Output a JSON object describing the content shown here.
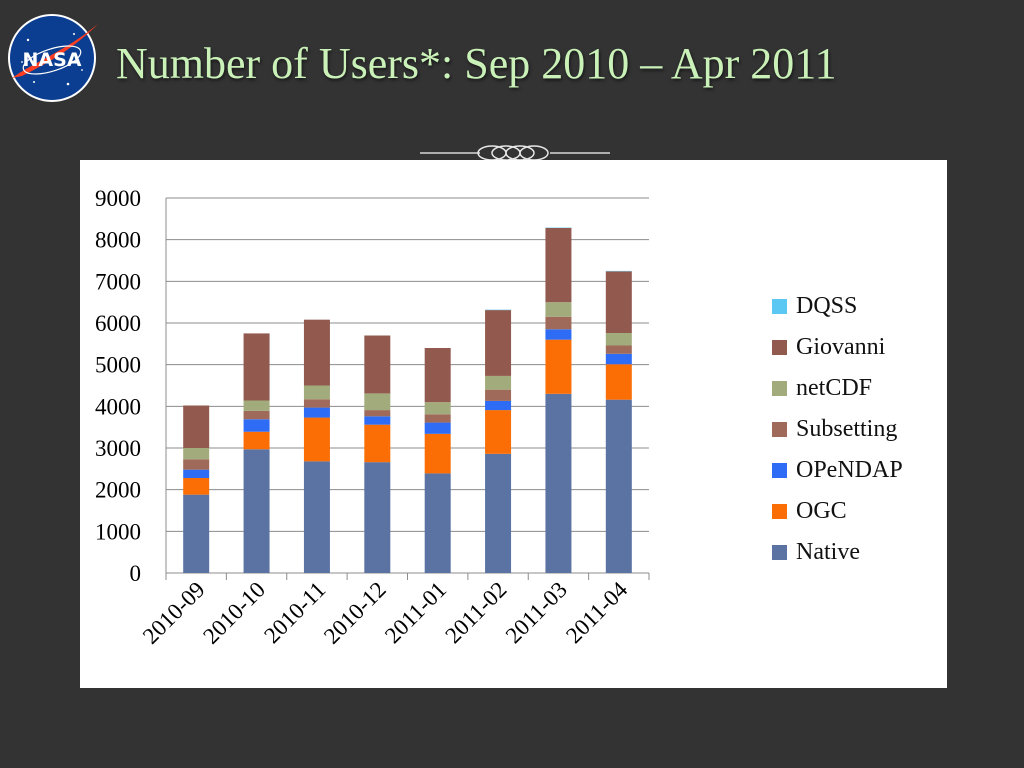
{
  "slide": {
    "title": "Number of Users*:  Sep 2010 – Apr 2011",
    "logo_text": "NASA"
  },
  "chart_data": {
    "type": "bar",
    "stacked": true,
    "categories": [
      "2010-09",
      "2010-10",
      "2010-11",
      "2010-12",
      "2011-01",
      "2011-02",
      "2011-03",
      "2011-04"
    ],
    "series": [
      {
        "name": "Native",
        "color": "#5b73a3",
        "values": [
          1880,
          2970,
          2680,
          2660,
          2390,
          2860,
          4300,
          4160
        ]
      },
      {
        "name": "OGC",
        "color": "#fb6e05",
        "values": [
          400,
          420,
          1050,
          900,
          950,
          1050,
          1300,
          850
        ]
      },
      {
        "name": "OPeNDAP",
        "color": "#2e6cf5",
        "values": [
          200,
          300,
          240,
          200,
          270,
          220,
          250,
          250
        ]
      },
      {
        "name": "Subsetting",
        "color": "#9f6a5a",
        "values": [
          250,
          200,
          200,
          150,
          200,
          270,
          300,
          200
        ]
      },
      {
        "name": "netCDF",
        "color": "#a2ab7b",
        "values": [
          270,
          250,
          330,
          400,
          290,
          330,
          350,
          300
        ]
      },
      {
        "name": "Giovanni",
        "color": "#925a4e",
        "values": [
          1020,
          1610,
          1580,
          1390,
          1300,
          1580,
          1780,
          1480
        ]
      },
      {
        "name": "DQSS",
        "color": "#5ac8f2",
        "values": [
          0,
          0,
          0,
          0,
          0,
          10,
          10,
          10
        ]
      }
    ],
    "legend_order": [
      "DQSS",
      "Giovanni",
      "netCDF",
      "Subsetting",
      "OPeNDAP",
      "OGC",
      "Native"
    ],
    "legend_position": "right",
    "y_ticks": [
      0,
      1000,
      2000,
      3000,
      4000,
      5000,
      6000,
      7000,
      8000,
      9000
    ],
    "ylim": [
      0,
      9000
    ],
    "grid": true,
    "xlabel": "",
    "ylabel": ""
  }
}
